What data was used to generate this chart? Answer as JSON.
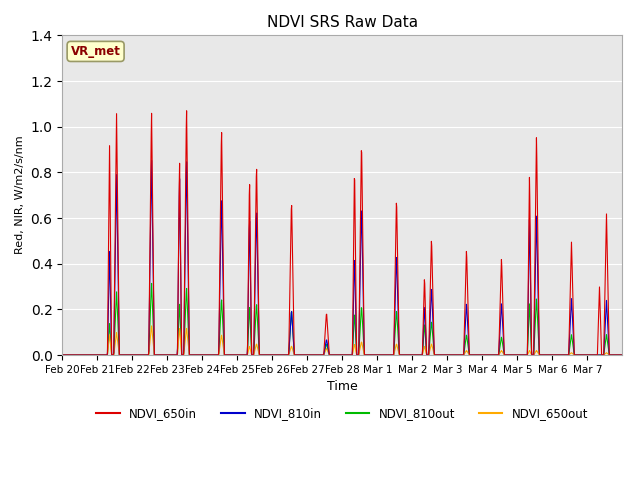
{
  "title": "NDVI SRS Raw Data",
  "xlabel": "Time",
  "ylabel": "Red, NIR, W/m2/s/nm",
  "ylim": [
    0,
    1.4
  ],
  "annotation": "VR_met",
  "series": {
    "NDVI_650in": {
      "color": "#dd0000",
      "lw": 0.8
    },
    "NDVI_810in": {
      "color": "#0000cc",
      "lw": 0.8
    },
    "NDVI_810out": {
      "color": "#00bb00",
      "lw": 0.8
    },
    "NDVI_650out": {
      "color": "#ffaa00",
      "lw": 0.8
    }
  },
  "tick_labels": [
    "Feb 20",
    "Feb 21",
    "Feb 22",
    "Feb 23",
    "Feb 24",
    "Feb 25",
    "Feb 26",
    "Feb 27",
    "Feb 28",
    "Mar 1",
    "Mar 2",
    "Mar 3",
    "Mar 4",
    "Mar 5",
    "Mar 6",
    "Mar 7"
  ],
  "n_days": 16,
  "peaks_650in": [
    0.0,
    1.07,
    1.08,
    1.1,
    1.01,
    0.85,
    0.69,
    0.19,
    0.95,
    0.7,
    0.52,
    0.47,
    0.43,
    0.97,
    0.5,
    0.62
  ],
  "peaks2_650in": [
    0.0,
    0.93,
    0.0,
    0.87,
    0.0,
    0.79,
    0.0,
    0.0,
    0.84,
    0.0,
    0.35,
    0.0,
    0.0,
    0.8,
    0.0,
    0.3
  ],
  "peaks_810in": [
    0.0,
    0.8,
    0.87,
    0.87,
    0.7,
    0.65,
    0.2,
    0.07,
    0.67,
    0.45,
    0.3,
    0.23,
    0.23,
    0.62,
    0.25,
    0.24
  ],
  "peaks2_810in": [
    0.0,
    0.46,
    0.0,
    0.8,
    0.0,
    0.62,
    0.0,
    0.0,
    0.45,
    0.0,
    0.22,
    0.0,
    0.0,
    0.61,
    0.0,
    0.0
  ],
  "peaks_810out": [
    0.0,
    0.28,
    0.32,
    0.3,
    0.25,
    0.23,
    0.2,
    0.05,
    0.22,
    0.2,
    0.15,
    0.09,
    0.08,
    0.25,
    0.09,
    0.09
  ],
  "peaks2_810out": [
    0.0,
    0.14,
    0.0,
    0.23,
    0.0,
    0.22,
    0.0,
    0.0,
    0.19,
    0.0,
    0.14,
    0.0,
    0.0,
    0.23,
    0.0,
    0.0
  ],
  "peaks_650out": [
    0.0,
    0.1,
    0.13,
    0.12,
    0.09,
    0.05,
    0.04,
    0.03,
    0.06,
    0.05,
    0.05,
    0.02,
    0.02,
    0.02,
    0.01,
    0.01
  ],
  "peaks2_650out": [
    0.0,
    0.09,
    0.0,
    0.12,
    0.0,
    0.04,
    0.0,
    0.0,
    0.05,
    0.0,
    0.04,
    0.0,
    0.0,
    0.02,
    0.0,
    0.0
  ]
}
